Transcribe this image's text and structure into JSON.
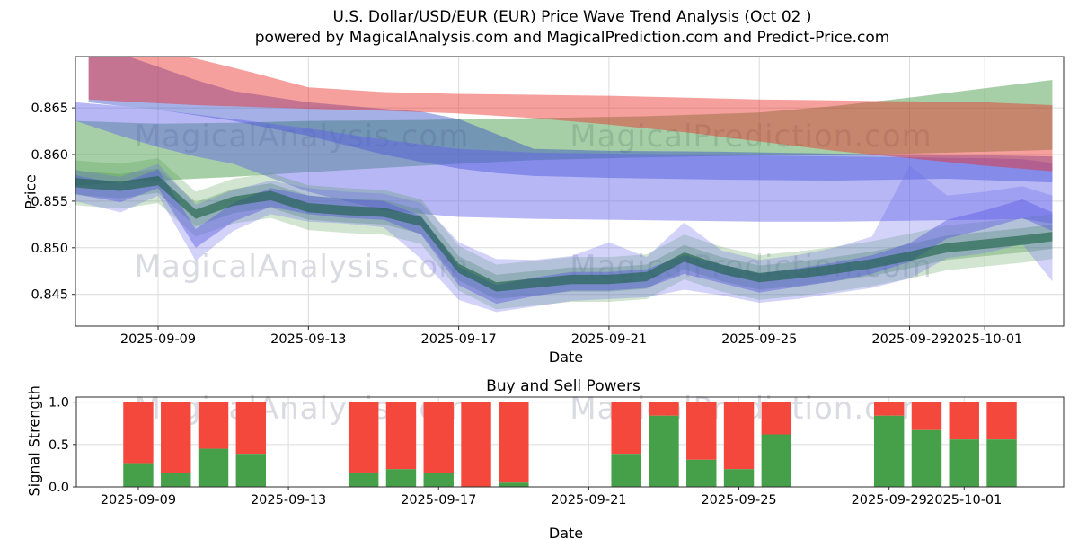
{
  "title": {
    "line1": "U.S. Dollar/USD/EUR (EUR) Price Wave Trend Analysis (Oct 02 )",
    "line2": "powered by MagicalAnalysis.com and MagicalPrediction.com and Predict-Price.com"
  },
  "watermarks": {
    "texts": [
      "MagicalAnalysis.com",
      "MagicalPrediction.com"
    ],
    "color": "#dadae2"
  },
  "chart_data": [
    {
      "type": "area",
      "name": "price-wave-trend",
      "title": "U.S. Dollar/USD/EUR (EUR) Price Wave Trend Analysis (Oct 02 )",
      "xlabel": "Date",
      "ylabel": "Price",
      "x_unit": "days since 2025-09-07",
      "xlim": [
        -0.2,
        26.1
      ],
      "ylim": [
        0.8416,
        0.8705
      ],
      "grid": true,
      "yticks": [
        0.865,
        0.86,
        0.855,
        0.85,
        0.845
      ],
      "ytick_labels": [
        "0.865",
        "0.860",
        "0.855",
        "0.850",
        "0.845"
      ],
      "xticks": [
        {
          "day": 2,
          "label": "2025-09-09"
        },
        {
          "day": 6,
          "label": "2025-09-13"
        },
        {
          "day": 10,
          "label": "2025-09-17"
        },
        {
          "day": 14,
          "label": "2025-09-21"
        },
        {
          "day": 18,
          "label": "2025-09-25"
        },
        {
          "day": 22,
          "label": "2025-09-29"
        },
        {
          "day": 24,
          "label": "2025-10-01"
        }
      ],
      "bands": [
        {
          "name": "green-trend-band",
          "color": "rgba(45,140,45,0.42)",
          "x": [
            -0.2,
            2,
            4,
            6,
            9,
            12,
            15,
            18,
            20,
            22,
            24,
            25.8
          ],
          "upper": [
            0.8636,
            0.8633,
            0.8634,
            0.8636,
            0.8637,
            0.8639,
            0.8641,
            0.8645,
            0.8652,
            0.8661,
            0.8671,
            0.868
          ],
          "lower": [
            0.8567,
            0.8572,
            0.8576,
            0.8581,
            0.8588,
            0.8594,
            0.8597,
            0.8599,
            0.86,
            0.8601,
            0.8603,
            0.8605
          ]
        },
        {
          "name": "blue-trend-band-upper",
          "color": "rgba(55,80,200,0.45)",
          "x": [
            0.15,
            1,
            2,
            3,
            4,
            6,
            8,
            9,
            10,
            11,
            12,
            14,
            17,
            20,
            23,
            25.8
          ],
          "upper": [
            0.8712,
            0.8708,
            0.8694,
            0.868,
            0.8668,
            0.8656,
            0.8649,
            0.8646,
            0.8638,
            0.8622,
            0.8606,
            0.8604,
            0.8603,
            0.8601,
            0.86,
            0.8598
          ],
          "lower": [
            0.8656,
            0.8652,
            0.8648,
            0.8642,
            0.8636,
            0.862,
            0.86,
            0.8592,
            0.8585,
            0.858,
            0.8577,
            0.8575,
            0.8573,
            0.8572,
            0.8574,
            0.857
          ]
        },
        {
          "name": "blue-trend-band-mid",
          "color": "rgba(95,95,235,0.45)",
          "x": [
            -0.2,
            1,
            2,
            3,
            4,
            6,
            8,
            10,
            12,
            14,
            16,
            18,
            20,
            22,
            24,
            25,
            25.8
          ],
          "upper": [
            0.8656,
            0.8652,
            0.8648,
            0.8643,
            0.8638,
            0.8628,
            0.8616,
            0.8606,
            0.8602,
            0.8601,
            0.86,
            0.8599,
            0.8598,
            0.8597,
            0.8596,
            0.8595,
            0.8591
          ],
          "lower": [
            0.8636,
            0.862,
            0.8608,
            0.8598,
            0.859,
            0.856,
            0.854,
            0.8533,
            0.8531,
            0.853,
            0.8529,
            0.8528,
            0.8528,
            0.8529,
            0.853,
            0.8531,
            0.8526
          ]
        },
        {
          "name": "red-trend-band",
          "color": "rgba(235,45,40,0.45)",
          "x": [
            0.15,
            1.5,
            3,
            4.5,
            6,
            8,
            10,
            12,
            14,
            16,
            18,
            20,
            22,
            24,
            25.8
          ],
          "upper": [
            0.8713,
            0.8711,
            0.8703,
            0.8688,
            0.8672,
            0.8667,
            0.8665,
            0.8664,
            0.8663,
            0.8661,
            0.8659,
            0.8658,
            0.8657,
            0.8656,
            0.8653
          ],
          "lower": [
            0.8659,
            0.8656,
            0.8653,
            0.8651,
            0.8649,
            0.8647,
            0.8644,
            0.8639,
            0.8632,
            0.8624,
            0.8614,
            0.8604,
            0.8596,
            0.8588,
            0.8582
          ]
        },
        {
          "name": "green-envelope-wide",
          "color": "rgba(70,150,70,0.25)",
          "x": [
            -0.2,
            0,
            1,
            2,
            3,
            4,
            5,
            6,
            7,
            8,
            9,
            10,
            11,
            12,
            13,
            14,
            15,
            16,
            17,
            18,
            19,
            20,
            21,
            22,
            23,
            24,
            25,
            25.8
          ],
          "upper": [
            0.8594,
            0.8593,
            0.859,
            0.8596,
            0.856,
            0.8574,
            0.858,
            0.8567,
            0.8564,
            0.8562,
            0.8552,
            0.8502,
            0.8482,
            0.8486,
            0.849,
            0.849,
            0.8493,
            0.8514,
            0.8501,
            0.8492,
            0.8496,
            0.8501,
            0.8507,
            0.8515,
            0.8524,
            0.8528,
            0.8532,
            0.8536
          ],
          "lower": [
            0.8546,
            0.8545,
            0.8542,
            0.8548,
            0.8512,
            0.8526,
            0.8532,
            0.8519,
            0.8516,
            0.8514,
            0.8504,
            0.8454,
            0.8434,
            0.8438,
            0.8442,
            0.8442,
            0.8445,
            0.8466,
            0.8453,
            0.8444,
            0.8448,
            0.8453,
            0.8459,
            0.8467,
            0.8476,
            0.848,
            0.8484,
            0.8488
          ]
        },
        {
          "name": "green-envelope",
          "color": "rgba(70,150,70,0.33)",
          "x": [
            -0.2,
            0,
            1,
            2,
            3,
            4,
            5,
            6,
            7,
            8,
            9,
            10,
            11,
            12,
            13,
            14,
            15,
            16,
            17,
            18,
            19,
            20,
            21,
            22,
            23,
            24,
            25,
            25.8
          ],
          "upper": [
            0.8583,
            0.8582,
            0.8579,
            0.8585,
            0.8549,
            0.8563,
            0.8569,
            0.8556,
            0.8553,
            0.8551,
            0.8541,
            0.8491,
            0.8471,
            0.8475,
            0.8479,
            0.8479,
            0.8482,
            0.8503,
            0.849,
            0.8481,
            0.8485,
            0.849,
            0.8496,
            0.8504,
            0.8513,
            0.8517,
            0.8521,
            0.8525
          ],
          "lower": [
            0.8557,
            0.8556,
            0.8553,
            0.8559,
            0.8523,
            0.8537,
            0.8543,
            0.853,
            0.8527,
            0.8525,
            0.8515,
            0.8465,
            0.8445,
            0.8449,
            0.8453,
            0.8453,
            0.8456,
            0.8477,
            0.8464,
            0.8455,
            0.8459,
            0.8464,
            0.847,
            0.8478,
            0.8487,
            0.8491,
            0.8495,
            0.8499
          ]
        },
        {
          "name": "blue-envelope-wide",
          "color": "rgba(110,110,235,0.30)",
          "x": [
            -0.2,
            0,
            1,
            2,
            3,
            4,
            5,
            6,
            7,
            8,
            9,
            10,
            11,
            12,
            13,
            14,
            15,
            16,
            17,
            18,
            19,
            20,
            21,
            22,
            23,
            24,
            25,
            25.8
          ],
          "upper": [
            0.8584,
            0.8582,
            0.8576,
            0.859,
            0.8546,
            0.8562,
            0.8572,
            0.8564,
            0.856,
            0.8558,
            0.8548,
            0.8506,
            0.8488,
            0.8487,
            0.8491,
            0.8506,
            0.849,
            0.8527,
            0.8497,
            0.8487,
            0.8492,
            0.85,
            0.8512,
            0.8588,
            0.8556,
            0.856,
            0.8566,
            0.8556
          ],
          "lower": [
            0.855,
            0.8548,
            0.8538,
            0.8556,
            0.8486,
            0.8518,
            0.8536,
            0.8528,
            0.8526,
            0.8522,
            0.8488,
            0.8444,
            0.8431,
            0.8437,
            0.8443,
            0.8445,
            0.8447,
            0.8455,
            0.8449,
            0.8441,
            0.8445,
            0.8451,
            0.8457,
            0.8467,
            0.8489,
            0.8494,
            0.8504,
            0.8464
          ]
        },
        {
          "name": "blue-envelope",
          "color": "rgba(85,85,225,0.42)",
          "x": [
            -0.2,
            0,
            1,
            2,
            3,
            4,
            5,
            6,
            7,
            8,
            9,
            10,
            11,
            12,
            13,
            14,
            15,
            16,
            17,
            18,
            19,
            20,
            21,
            22,
            23,
            24,
            25,
            25.8
          ],
          "upper": [
            0.8578,
            0.8576,
            0.8569,
            0.8584,
            0.852,
            0.8548,
            0.8564,
            0.8556,
            0.8552,
            0.855,
            0.8534,
            0.848,
            0.846,
            0.8468,
            0.8474,
            0.8474,
            0.8477,
            0.8492,
            0.8482,
            0.8472,
            0.8478,
            0.8484,
            0.8492,
            0.8505,
            0.853,
            0.854,
            0.8552,
            0.8538
          ],
          "lower": [
            0.8558,
            0.8556,
            0.8549,
            0.8564,
            0.85,
            0.8528,
            0.8544,
            0.8536,
            0.8532,
            0.853,
            0.8514,
            0.846,
            0.844,
            0.8448,
            0.8454,
            0.8454,
            0.8457,
            0.8472,
            0.8462,
            0.8452,
            0.8458,
            0.8464,
            0.8472,
            0.8485,
            0.851,
            0.852,
            0.8532,
            0.8518
          ]
        },
        {
          "name": "green-core-band",
          "color": "rgba(25,95,65,0.60)",
          "x": [
            -0.2,
            0,
            1,
            2,
            3,
            4,
            5,
            6,
            7,
            8,
            9,
            10,
            11,
            12,
            13,
            14,
            15,
            16,
            17,
            18,
            19,
            20,
            21,
            22,
            23,
            24,
            25,
            25.8
          ],
          "upper": [
            0.8575,
            0.8574,
            0.8571,
            0.8577,
            0.8541,
            0.8555,
            0.8561,
            0.8548,
            0.8545,
            0.8543,
            0.8533,
            0.8483,
            0.8463,
            0.8467,
            0.8471,
            0.8471,
            0.8474,
            0.8495,
            0.8482,
            0.8473,
            0.8477,
            0.8482,
            0.8488,
            0.8496,
            0.8505,
            0.8509,
            0.8513,
            0.8517
          ],
          "lower": [
            0.8565,
            0.8564,
            0.8561,
            0.8567,
            0.8531,
            0.8545,
            0.8551,
            0.8538,
            0.8535,
            0.8533,
            0.8523,
            0.8473,
            0.8453,
            0.8457,
            0.8461,
            0.8461,
            0.8464,
            0.8485,
            0.8472,
            0.8463,
            0.8467,
            0.8472,
            0.8478,
            0.8486,
            0.8495,
            0.8499,
            0.8503,
            0.8507
          ]
        }
      ]
    },
    {
      "type": "bar",
      "name": "buy-sell-powers",
      "title": "Buy and Sell Powers",
      "xlabel": "Date",
      "ylabel": "Signal Strength",
      "stacked": true,
      "x_unit": "days since 2025-09-07",
      "xlim": [
        0.35,
        26.65
      ],
      "ylim": [
        0,
        1.06
      ],
      "grid": true,
      "bar_width_days": 0.8,
      "buy_color": "#46a04a",
      "sell_color": "#f4483d",
      "yticks": [
        0.0,
        0.5,
        1.0
      ],
      "ytick_labels": [
        "0.0",
        "0.5",
        "1.0"
      ],
      "xticks": [
        {
          "day": 2,
          "label": "2025-09-09"
        },
        {
          "day": 6,
          "label": "2025-09-13"
        },
        {
          "day": 10,
          "label": "2025-09-17"
        },
        {
          "day": 14,
          "label": "2025-09-21"
        },
        {
          "day": 18,
          "label": "2025-09-25"
        },
        {
          "day": 22,
          "label": "2025-09-29"
        },
        {
          "day": 24,
          "label": "2025-10-01"
        }
      ],
      "bars": [
        {
          "day": 2,
          "date": "2025-09-09",
          "buy": 0.28,
          "sell": 0.72
        },
        {
          "day": 3,
          "date": "2025-09-10",
          "buy": 0.16,
          "sell": 0.84
        },
        {
          "day": 4,
          "date": "2025-09-11",
          "buy": 0.45,
          "sell": 0.55
        },
        {
          "day": 5,
          "date": "2025-09-12",
          "buy": 0.39,
          "sell": 0.61
        },
        {
          "day": 8,
          "date": "2025-09-15",
          "buy": 0.17,
          "sell": 0.83
        },
        {
          "day": 9,
          "date": "2025-09-16",
          "buy": 0.21,
          "sell": 0.79
        },
        {
          "day": 10,
          "date": "2025-09-17",
          "buy": 0.16,
          "sell": 0.84
        },
        {
          "day": 11,
          "date": "2025-09-18",
          "buy": 0.0,
          "sell": 1.0
        },
        {
          "day": 12,
          "date": "2025-09-19",
          "buy": 0.05,
          "sell": 0.95
        },
        {
          "day": 15,
          "date": "2025-09-22",
          "buy": 0.39,
          "sell": 0.61
        },
        {
          "day": 16,
          "date": "2025-09-23",
          "buy": 0.84,
          "sell": 0.16
        },
        {
          "day": 17,
          "date": "2025-09-24",
          "buy": 0.32,
          "sell": 0.68
        },
        {
          "day": 18,
          "date": "2025-09-25",
          "buy": 0.21,
          "sell": 0.79
        },
        {
          "day": 19,
          "date": "2025-09-26",
          "buy": 0.62,
          "sell": 0.38
        },
        {
          "day": 22,
          "date": "2025-09-29",
          "buy": 0.84,
          "sell": 0.16
        },
        {
          "day": 23,
          "date": "2025-09-30",
          "buy": 0.67,
          "sell": 0.33
        },
        {
          "day": 24,
          "date": "2025-10-01",
          "buy": 0.56,
          "sell": 0.44
        },
        {
          "day": 25,
          "date": "2025-10-02",
          "buy": 0.56,
          "sell": 0.44
        }
      ]
    }
  ]
}
